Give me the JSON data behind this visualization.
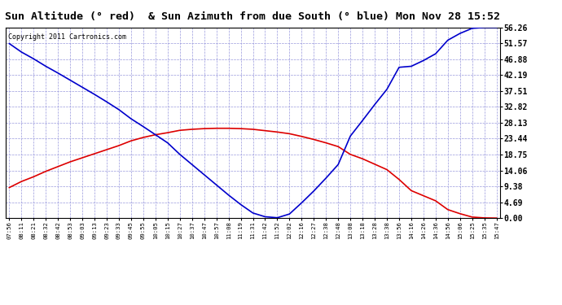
{
  "title": "Sun Altitude (° red)  & Sun Azimuth from due South (° blue) Mon Nov 28 15:52",
  "copyright": "Copyright 2011 Cartronics.com",
  "yticks": [
    0.0,
    4.69,
    9.38,
    14.06,
    18.75,
    23.44,
    28.13,
    32.82,
    37.51,
    42.19,
    46.88,
    51.57,
    56.26
  ],
  "ymin": 0.0,
  "ymax": 56.26,
  "xtick_labels": [
    "07:56",
    "08:11",
    "08:21",
    "08:32",
    "08:42",
    "08:53",
    "09:03",
    "09:13",
    "09:23",
    "09:33",
    "09:45",
    "09:55",
    "10:05",
    "10:15",
    "10:27",
    "10:37",
    "10:47",
    "10:57",
    "11:08",
    "11:19",
    "11:31",
    "11:42",
    "11:52",
    "12:02",
    "12:16",
    "12:27",
    "12:38",
    "12:48",
    "13:08",
    "13:18",
    "13:28",
    "13:38",
    "13:56",
    "14:16",
    "14:26",
    "14:36",
    "14:56",
    "15:06",
    "15:25",
    "15:35",
    "15:47"
  ],
  "altitude_values": [
    9.0,
    10.8,
    12.2,
    13.8,
    15.2,
    16.6,
    17.8,
    19.0,
    20.2,
    21.4,
    22.8,
    23.8,
    24.6,
    25.2,
    25.9,
    26.2,
    26.4,
    26.5,
    26.5,
    26.4,
    26.2,
    25.8,
    25.4,
    24.9,
    24.1,
    23.2,
    22.2,
    21.1,
    18.8,
    17.5,
    15.9,
    14.3,
    11.4,
    8.1,
    6.6,
    5.1,
    2.5,
    1.3,
    0.3,
    0.05,
    0.0
  ],
  "azimuth_values": [
    51.5,
    49.0,
    47.0,
    44.8,
    42.8,
    40.7,
    38.6,
    36.5,
    34.3,
    32.0,
    29.3,
    27.0,
    24.6,
    22.2,
    18.8,
    15.8,
    12.8,
    9.8,
    6.8,
    4.0,
    1.5,
    0.4,
    0.1,
    1.2,
    4.5,
    8.0,
    11.8,
    15.8,
    24.2,
    28.8,
    33.5,
    38.0,
    44.5,
    44.8,
    46.5,
    48.5,
    52.5,
    54.5,
    56.0,
    56.26,
    56.26
  ],
  "line_color_altitude": "#dd0000",
  "line_color_azimuth": "#0000cc",
  "grid_color": "#aaaaff",
  "title_bg": "#cccccc",
  "plot_bg": "#ffffff"
}
